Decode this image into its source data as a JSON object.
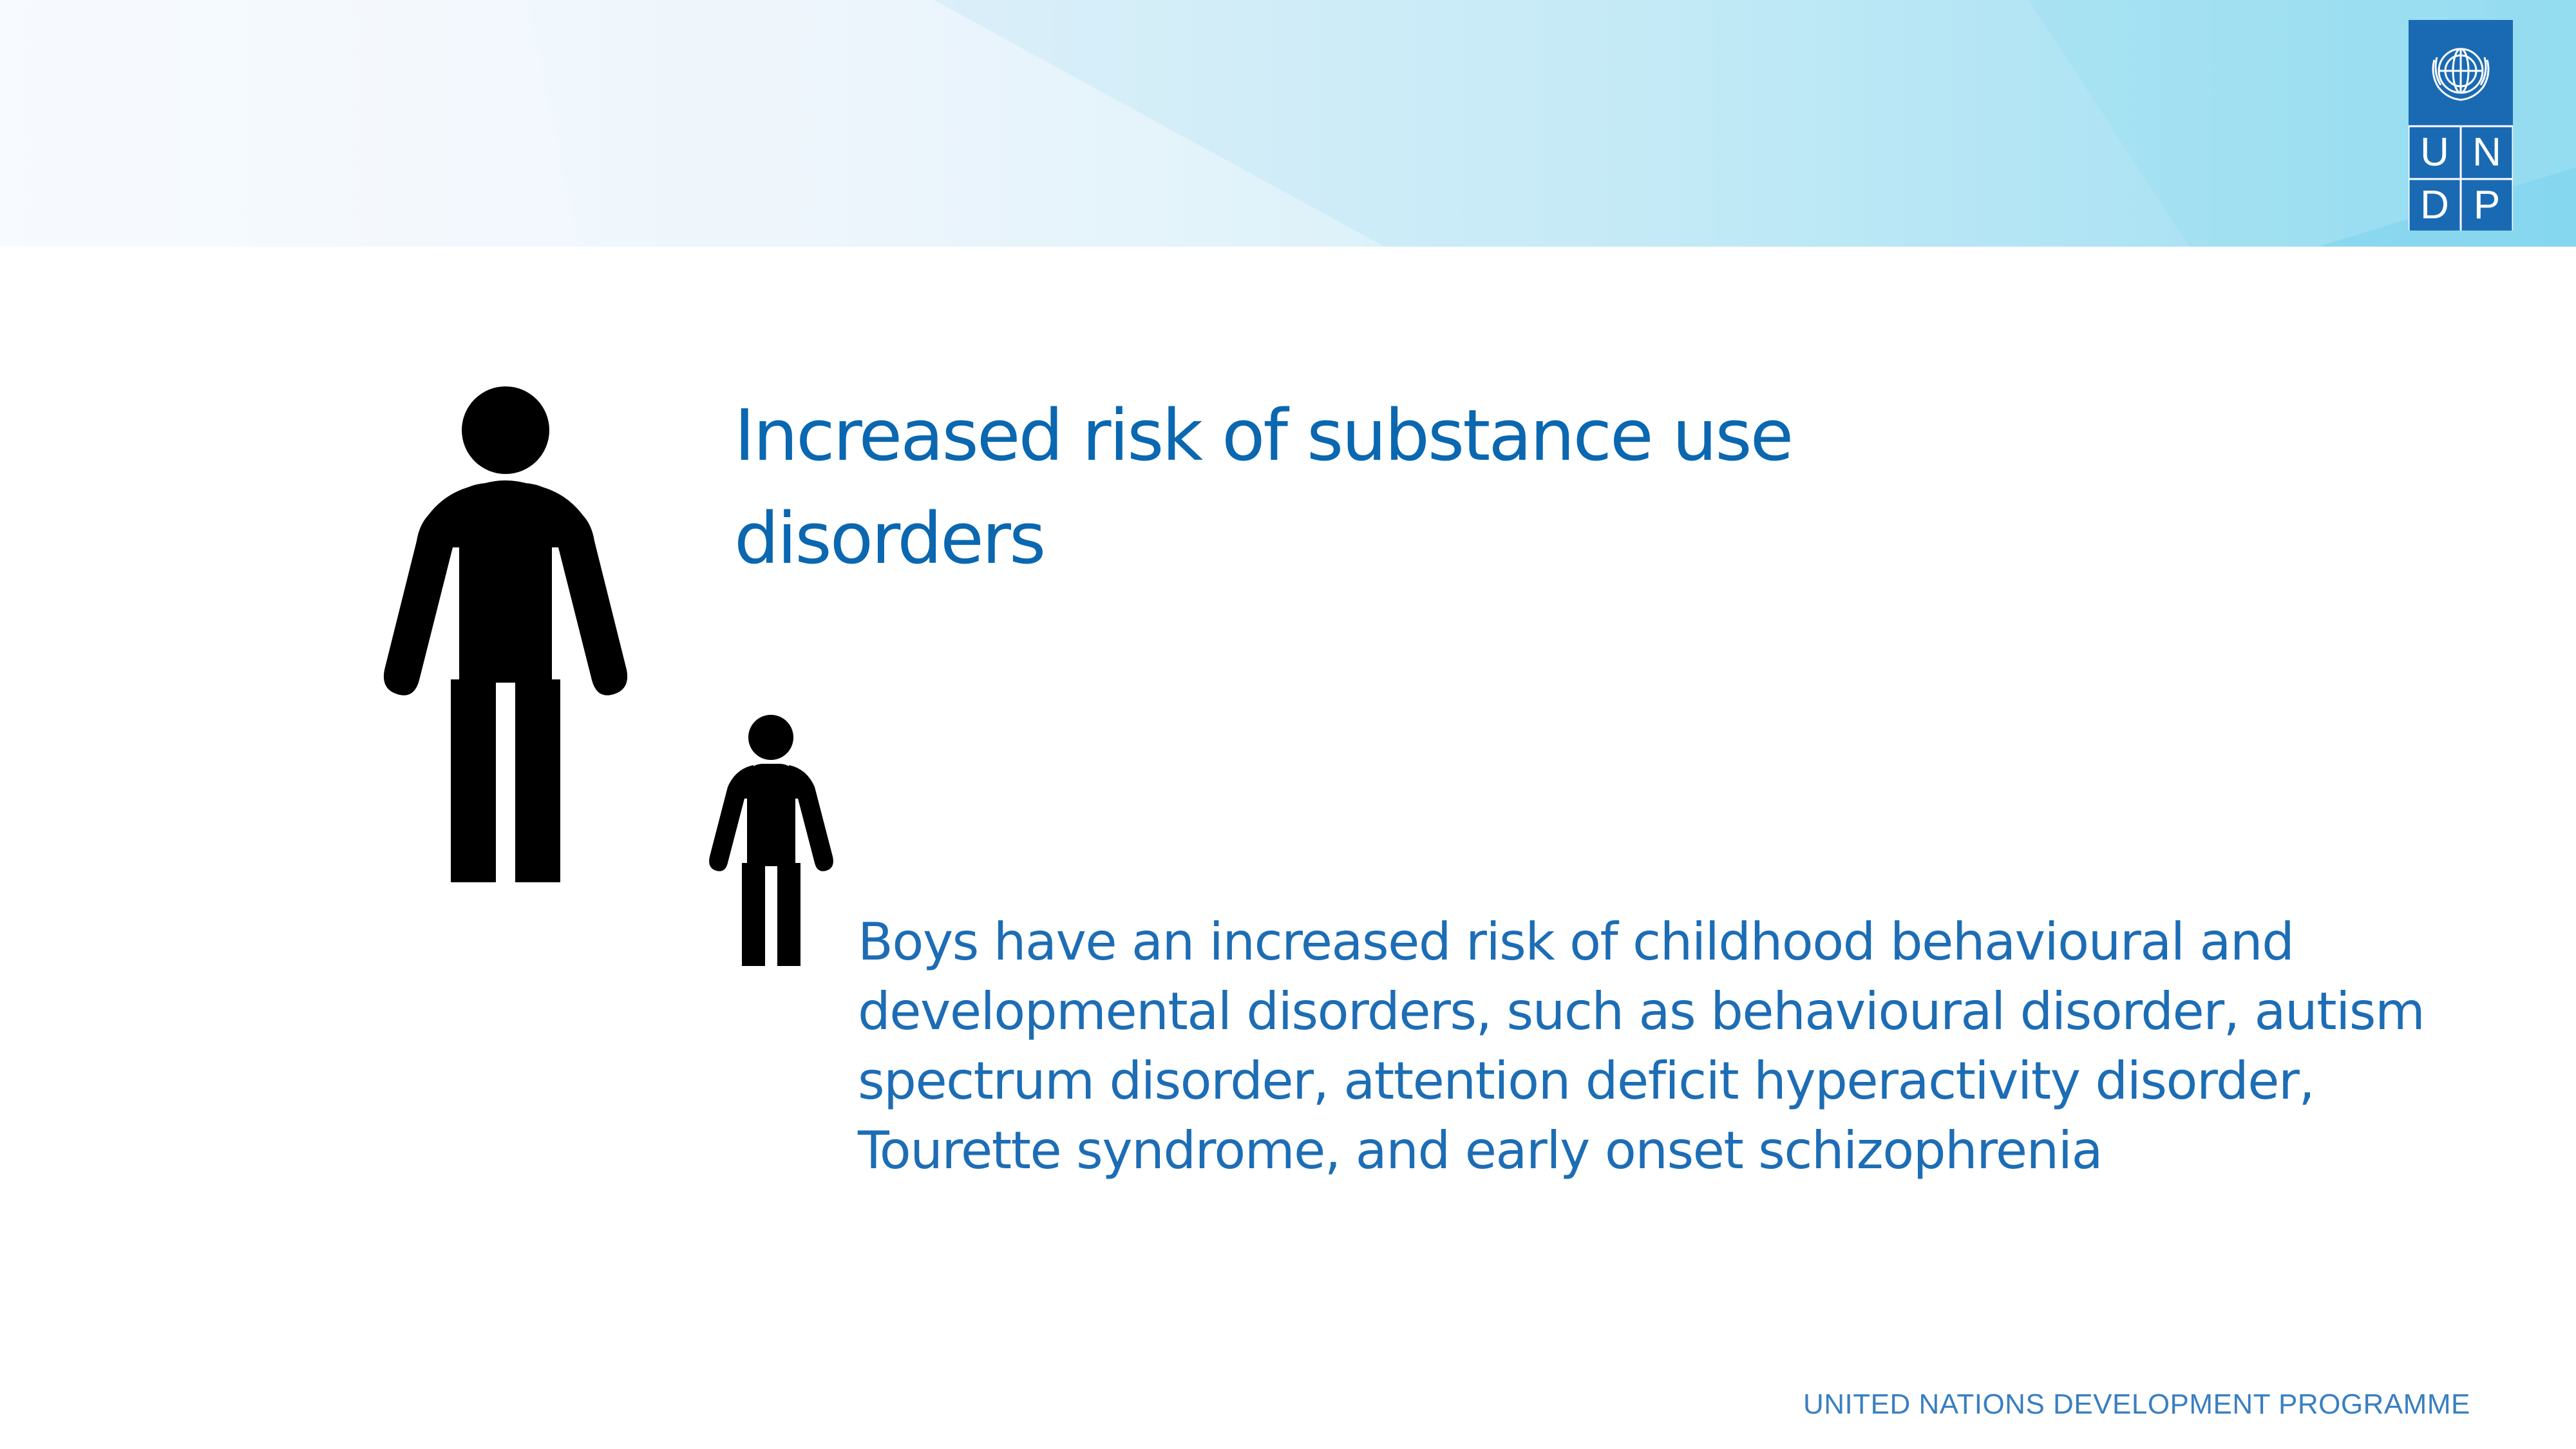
{
  "header": {
    "logo": {
      "emblem_icon": "un-emblem-icon",
      "letters": [
        "U",
        "N",
        "D",
        "P"
      ],
      "background_color": "#1a6ab3"
    }
  },
  "main": {
    "adult_icon": "adult-person-icon",
    "child_icon": "child-person-icon",
    "headline": "Increased risk of substance use disorders",
    "body": "Boys have an increased risk of childhood behavioural and developmental disorders, such as behavioural disorder, autism spectrum disorder, attention deficit hyperactivity disorder, Tourette syndrome, and early onset schizophrenia"
  },
  "footer": {
    "organization": "UNITED NATIONS DEVELOPMENT PROGRAMME"
  },
  "colors": {
    "headline": "#0a67b0",
    "body": "#1d6db5",
    "footer": "#3a7fc0",
    "figures": "#000000"
  }
}
